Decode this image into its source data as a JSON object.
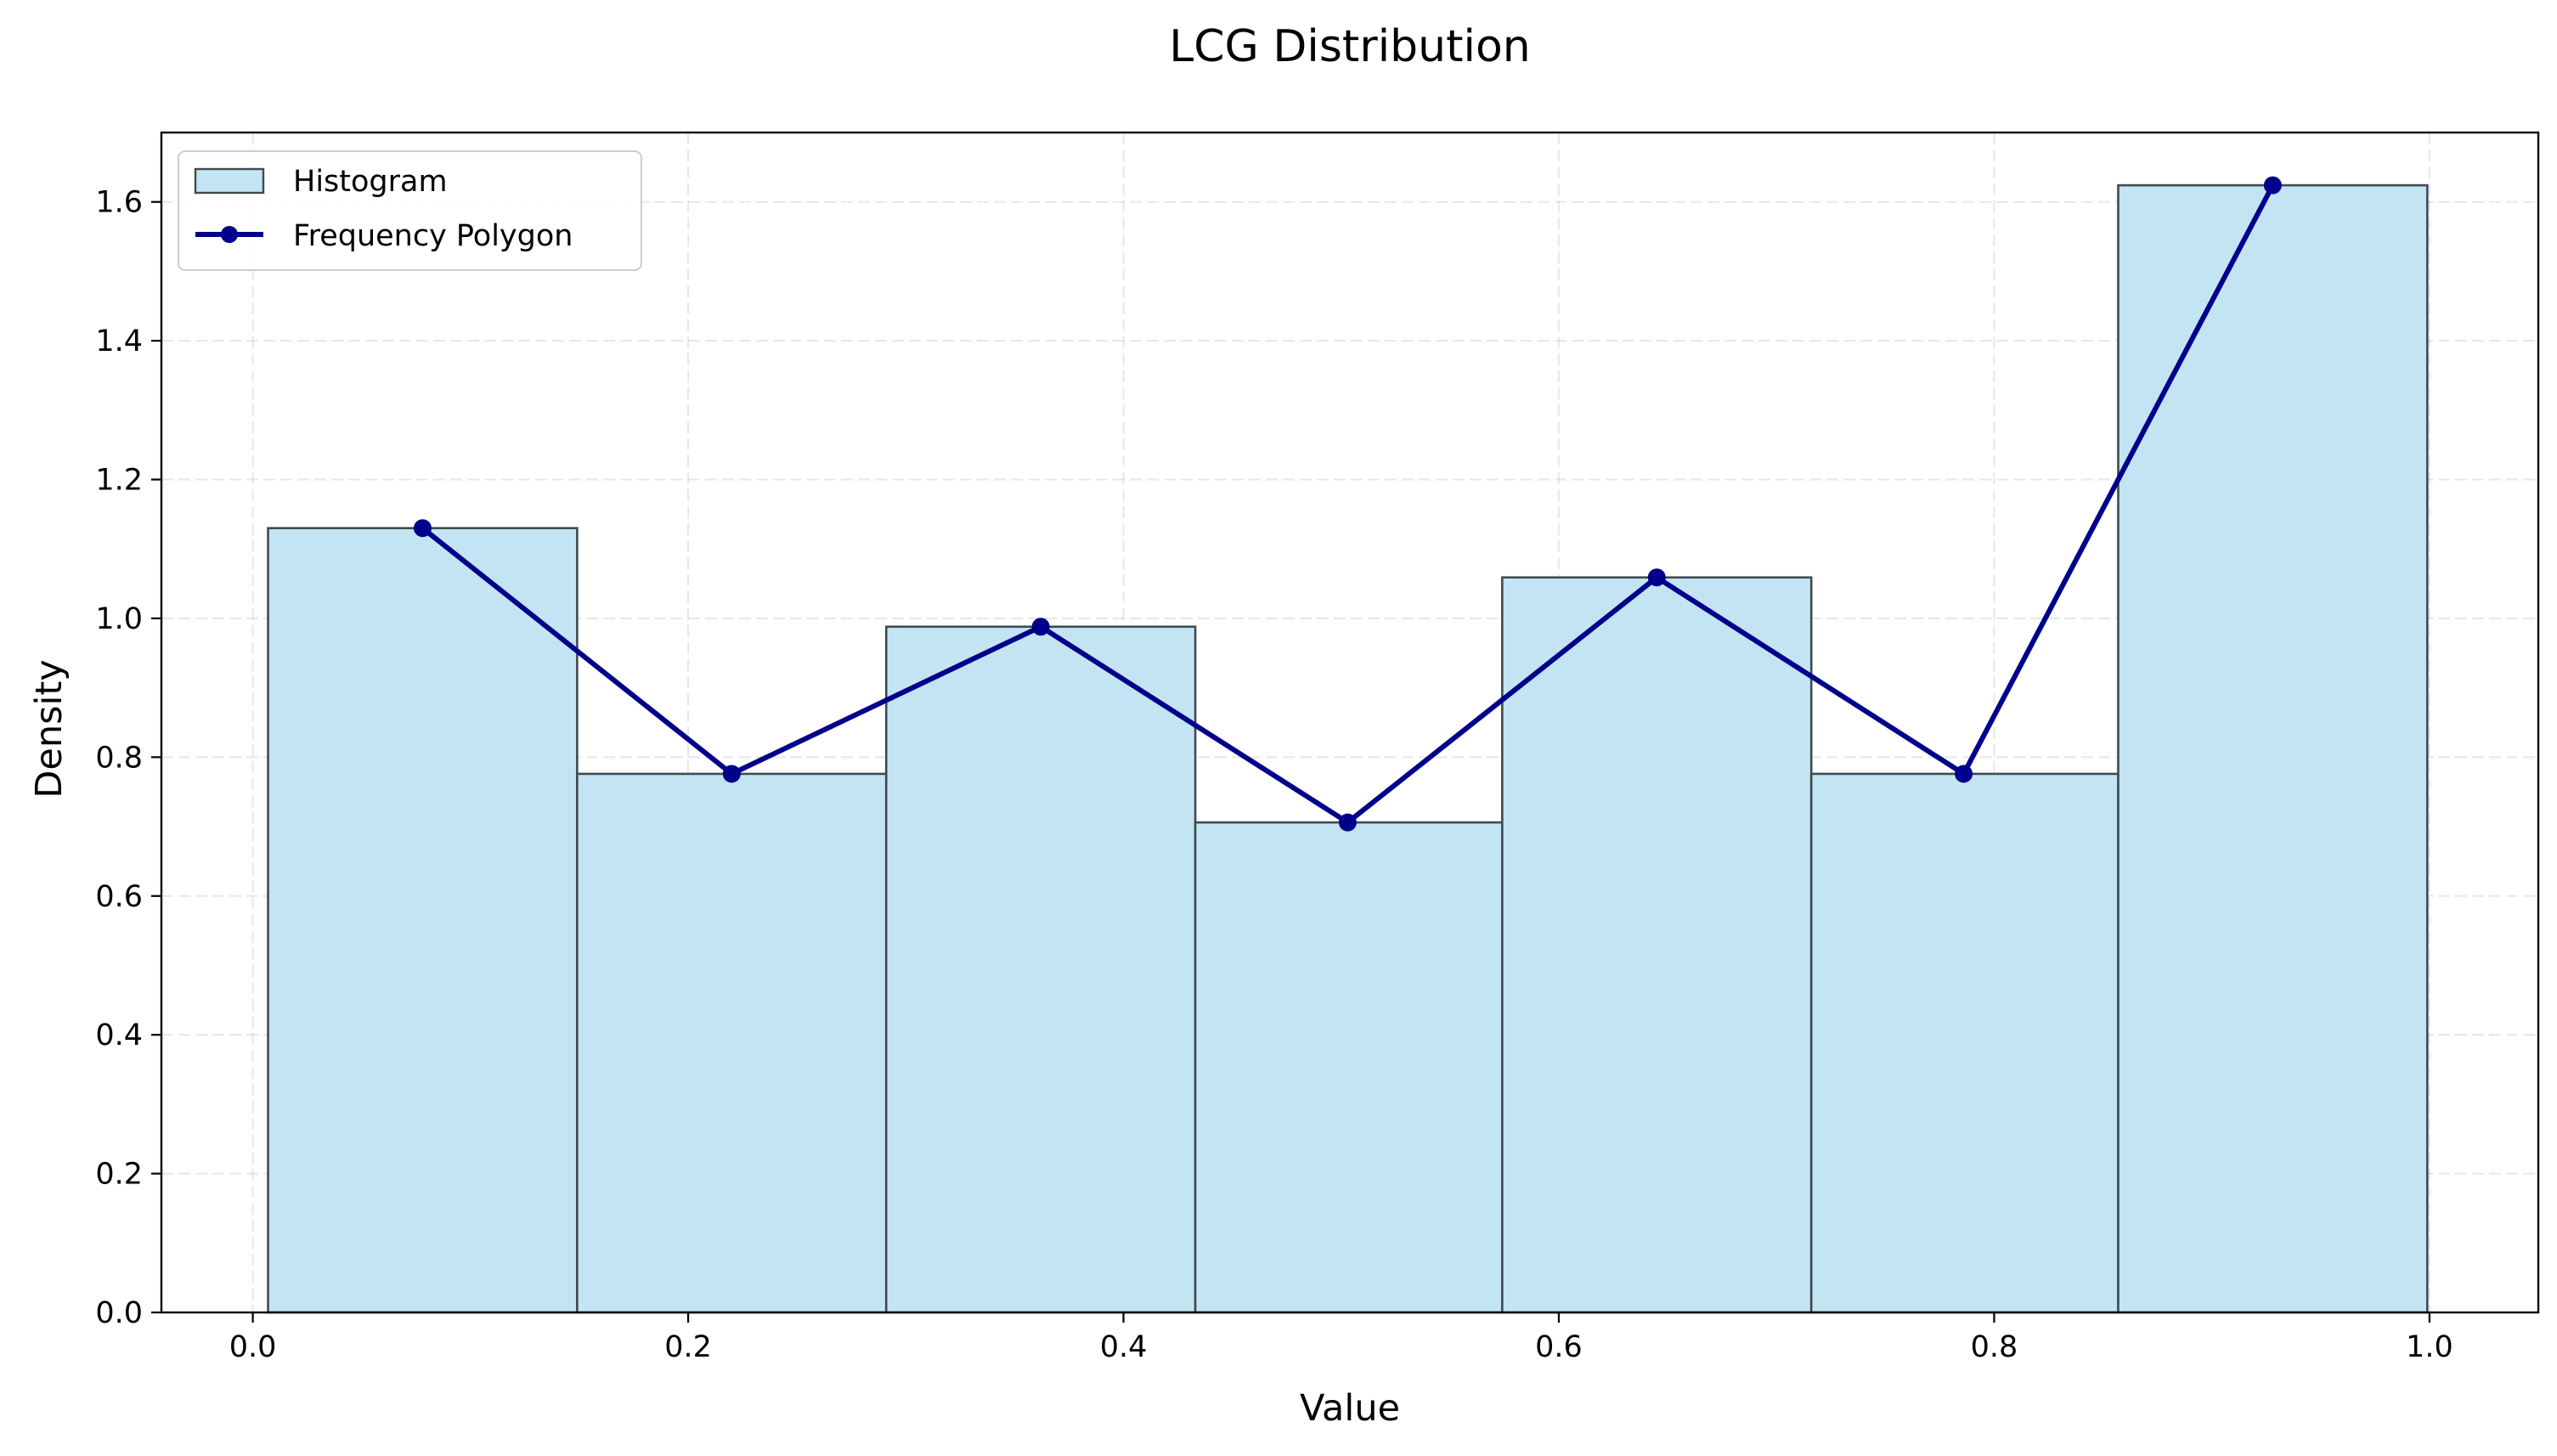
{
  "chart_data": {
    "type": "bar",
    "title": "LCG Distribution",
    "xlabel": "Value",
    "ylabel": "Density",
    "xlim": [
      -0.042,
      1.05
    ],
    "ylim": [
      0,
      1.7
    ],
    "x_ticks": [
      0.0,
      0.2,
      0.4,
      0.6,
      0.8,
      1.0
    ],
    "x_tick_labels": [
      "0.0",
      "0.2",
      "0.4",
      "0.6",
      "0.8",
      "1.0"
    ],
    "y_ticks": [
      0.0,
      0.2,
      0.4,
      0.6,
      0.8,
      1.0,
      1.2,
      1.4,
      1.6
    ],
    "y_tick_labels": [
      "0.0",
      "0.2",
      "0.4",
      "0.6",
      "0.8",
      "1.0",
      "1.2",
      "1.4",
      "1.6"
    ],
    "grid": true,
    "legend_position": "top-left",
    "bin_edges": [
      0.007,
      0.149,
      0.291,
      0.433,
      0.574,
      0.716,
      0.857,
      0.999
    ],
    "series": [
      {
        "name": "Histogram",
        "kind": "histogram",
        "values": [
          1.13,
          0.776,
          0.988,
          0.706,
          1.059,
          0.776,
          1.624
        ],
        "color": "#c3e5f3",
        "edge_color": "#3f4a50"
      },
      {
        "name": "Frequency Polygon",
        "kind": "line",
        "x": [
          0.078,
          0.22,
          0.362,
          0.503,
          0.645,
          0.786,
          0.928
        ],
        "values": [
          1.13,
          0.776,
          0.988,
          0.706,
          1.059,
          0.776,
          1.624
        ],
        "color": "#00008b"
      }
    ]
  }
}
